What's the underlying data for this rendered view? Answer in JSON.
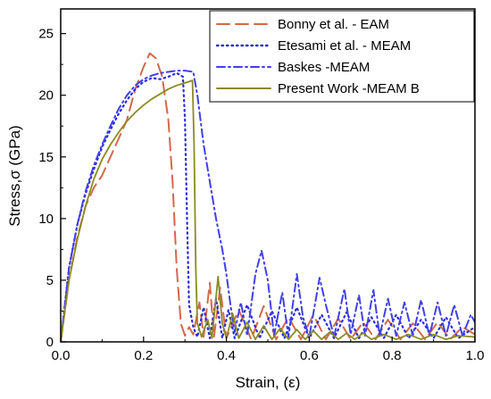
{
  "chart_data": {
    "type": "line",
    "title": "",
    "xlabel": "Strain, (ε)",
    "ylabel": "Stress,σ (GPa)",
    "xlim": [
      0.0,
      1.0
    ],
    "ylim": [
      0,
      27
    ],
    "x_ticks": [
      "0.0",
      "0.2",
      "0.4",
      "0.6",
      "0.8",
      "1.0"
    ],
    "y_ticks": [
      "0",
      "5",
      "10",
      "15",
      "20",
      "25"
    ],
    "legend_position": "top-right",
    "grid": false,
    "series": [
      {
        "name": "Bonny et al. - EAM",
        "color": "#d2694b",
        "style": "long-dash",
        "points": [
          [
            0,
            0
          ],
          [
            0.02,
            5
          ],
          [
            0.04,
            8.5
          ],
          [
            0.06,
            11
          ],
          [
            0.08,
            12.5
          ],
          [
            0.1,
            13.5
          ],
          [
            0.12,
            15
          ],
          [
            0.14,
            16.5
          ],
          [
            0.16,
            18
          ],
          [
            0.18,
            20.5
          ],
          [
            0.2,
            22.3
          ],
          [
            0.215,
            23.4
          ],
          [
            0.23,
            23
          ],
          [
            0.245,
            21.5
          ],
          [
            0.26,
            18
          ],
          [
            0.27,
            13
          ],
          [
            0.28,
            6
          ],
          [
            0.29,
            1.5
          ],
          [
            0.3,
            0.5
          ],
          [
            0.31,
            1.2
          ],
          [
            0.32,
            0.6
          ],
          [
            0.335,
            3.2
          ],
          [
            0.345,
            0.4
          ],
          [
            0.36,
            4.8
          ],
          [
            0.37,
            0.4
          ],
          [
            0.385,
            4.4
          ],
          [
            0.4,
            0.3
          ],
          [
            0.43,
            2.6
          ],
          [
            0.46,
            0.2
          ],
          [
            0.49,
            2.9
          ],
          [
            0.52,
            0.2
          ],
          [
            0.55,
            2.0
          ],
          [
            0.58,
            0.2
          ],
          [
            0.61,
            2.2
          ],
          [
            0.64,
            0.2
          ],
          [
            0.67,
            1.9
          ],
          [
            0.7,
            0.2
          ],
          [
            0.73,
            1.6
          ],
          [
            0.76,
            0.2
          ],
          [
            0.79,
            1.8
          ],
          [
            0.82,
            0.2
          ],
          [
            0.85,
            1.5
          ],
          [
            0.88,
            0.2
          ],
          [
            0.91,
            1.6
          ],
          [
            0.94,
            0.2
          ],
          [
            0.97,
            1.2
          ],
          [
            1.0,
            0.6
          ]
        ]
      },
      {
        "name": "Etesami et al. - MEAM",
        "color": "#2b2bd9",
        "style": "dotted",
        "points": [
          [
            0,
            0
          ],
          [
            0.02,
            6
          ],
          [
            0.04,
            9.5
          ],
          [
            0.06,
            12
          ],
          [
            0.08,
            14
          ],
          [
            0.1,
            15.8
          ],
          [
            0.12,
            17.2
          ],
          [
            0.14,
            18.5
          ],
          [
            0.16,
            19.6
          ],
          [
            0.18,
            20.5
          ],
          [
            0.2,
            21.1
          ],
          [
            0.22,
            21.4
          ],
          [
            0.24,
            21.3
          ],
          [
            0.26,
            21.5
          ],
          [
            0.28,
            21.8
          ],
          [
            0.295,
            21.5
          ],
          [
            0.3,
            18
          ],
          [
            0.305,
            10
          ],
          [
            0.31,
            3
          ],
          [
            0.32,
            1.2
          ],
          [
            0.33,
            0.4
          ],
          [
            0.345,
            2.8
          ],
          [
            0.36,
            0.3
          ],
          [
            0.375,
            3.5
          ],
          [
            0.39,
            0.3
          ],
          [
            0.405,
            2.6
          ],
          [
            0.42,
            0.3
          ],
          [
            0.45,
            3.0
          ],
          [
            0.48,
            0.3
          ],
          [
            0.51,
            2.5
          ],
          [
            0.54,
            0.3
          ],
          [
            0.57,
            2.8
          ],
          [
            0.6,
            0.3
          ],
          [
            0.63,
            2.2
          ],
          [
            0.66,
            0.3
          ],
          [
            0.69,
            2.4
          ],
          [
            0.72,
            0.3
          ],
          [
            0.75,
            2.0
          ],
          [
            0.78,
            0.3
          ],
          [
            0.81,
            2.2
          ],
          [
            0.84,
            0.3
          ],
          [
            0.87,
            1.8
          ],
          [
            0.9,
            0.3
          ],
          [
            0.93,
            2.0
          ],
          [
            0.96,
            0.3
          ],
          [
            1.0,
            1.2
          ]
        ]
      },
      {
        "name": "Baskes -MEAM",
        "color": "#4040e8",
        "style": "dash-dot",
        "points": [
          [
            0,
            0
          ],
          [
            0.02,
            6
          ],
          [
            0.04,
            9.5
          ],
          [
            0.06,
            12.2
          ],
          [
            0.08,
            14.3
          ],
          [
            0.1,
            16
          ],
          [
            0.12,
            17.5
          ],
          [
            0.14,
            18.9
          ],
          [
            0.16,
            20
          ],
          [
            0.18,
            20.8
          ],
          [
            0.2,
            21.3
          ],
          [
            0.22,
            21.6
          ],
          [
            0.24,
            21.8
          ],
          [
            0.26,
            21.9
          ],
          [
            0.28,
            22
          ],
          [
            0.3,
            22
          ],
          [
            0.32,
            21.9
          ],
          [
            0.33,
            20
          ],
          [
            0.345,
            16
          ],
          [
            0.36,
            13
          ],
          [
            0.375,
            10
          ],
          [
            0.39,
            7.5
          ],
          [
            0.4,
            5.5
          ],
          [
            0.41,
            3
          ],
          [
            0.42,
            0.8
          ],
          [
            0.435,
            3.2
          ],
          [
            0.45,
            0.5
          ],
          [
            0.47,
            5.5
          ],
          [
            0.485,
            7.4
          ],
          [
            0.5,
            5
          ],
          [
            0.515,
            0.5
          ],
          [
            0.535,
            4
          ],
          [
            0.55,
            0.4
          ],
          [
            0.57,
            5.5
          ],
          [
            0.585,
            2
          ],
          [
            0.6,
            0.4
          ],
          [
            0.625,
            5.2
          ],
          [
            0.64,
            3
          ],
          [
            0.66,
            0.4
          ],
          [
            0.685,
            4.3
          ],
          [
            0.7,
            0.6
          ],
          [
            0.72,
            3.8
          ],
          [
            0.735,
            0.5
          ],
          [
            0.755,
            4.2
          ],
          [
            0.77,
            0.5
          ],
          [
            0.79,
            3.5
          ],
          [
            0.81,
            0.5
          ],
          [
            0.83,
            3.2
          ],
          [
            0.85,
            0.5
          ],
          [
            0.87,
            3.4
          ],
          [
            0.89,
            0.5
          ],
          [
            0.91,
            3.2
          ],
          [
            0.93,
            0.5
          ],
          [
            0.95,
            3.0
          ],
          [
            0.97,
            0.5
          ],
          [
            0.99,
            2.2
          ],
          [
            1.0,
            1.6
          ]
        ]
      },
      {
        "name": "Present Work -MEAM B",
        "color": "#8b8b22",
        "style": "solid",
        "points": [
          [
            0,
            0
          ],
          [
            0.02,
            5
          ],
          [
            0.04,
            8.3
          ],
          [
            0.06,
            11
          ],
          [
            0.08,
            13.2
          ],
          [
            0.1,
            14.8
          ],
          [
            0.12,
            16
          ],
          [
            0.14,
            17
          ],
          [
            0.16,
            17.9
          ],
          [
            0.18,
            18.6
          ],
          [
            0.2,
            19.2
          ],
          [
            0.22,
            19.7
          ],
          [
            0.24,
            20.1
          ],
          [
            0.26,
            20.5
          ],
          [
            0.28,
            20.8
          ],
          [
            0.3,
            21
          ],
          [
            0.318,
            21.2
          ],
          [
            0.322,
            16
          ],
          [
            0.326,
            6
          ],
          [
            0.33,
            1.5
          ],
          [
            0.34,
            0.4
          ],
          [
            0.355,
            1.8
          ],
          [
            0.365,
            0.3
          ],
          [
            0.38,
            5.3
          ],
          [
            0.39,
            1.5
          ],
          [
            0.4,
            0.3
          ],
          [
            0.415,
            2.3
          ],
          [
            0.43,
            0.3
          ],
          [
            0.45,
            1.6
          ],
          [
            0.47,
            0.2
          ],
          [
            0.49,
            1.3
          ],
          [
            0.51,
            0.2
          ],
          [
            0.53,
            1.1
          ],
          [
            0.55,
            0.2
          ],
          [
            0.57,
            1.0
          ],
          [
            0.59,
            0.2
          ],
          [
            0.61,
            0.9
          ],
          [
            0.63,
            0.2
          ],
          [
            0.65,
            0.8
          ],
          [
            0.67,
            0.2
          ],
          [
            0.69,
            0.7
          ],
          [
            0.71,
            0.2
          ],
          [
            0.73,
            0.7
          ],
          [
            0.75,
            0.2
          ],
          [
            0.78,
            0.6
          ],
          [
            0.81,
            0.2
          ],
          [
            0.84,
            0.6
          ],
          [
            0.87,
            0.2
          ],
          [
            0.9,
            0.6
          ],
          [
            0.93,
            0.2
          ],
          [
            0.96,
            0.5
          ],
          [
            1.0,
            0.4
          ]
        ]
      }
    ]
  }
}
